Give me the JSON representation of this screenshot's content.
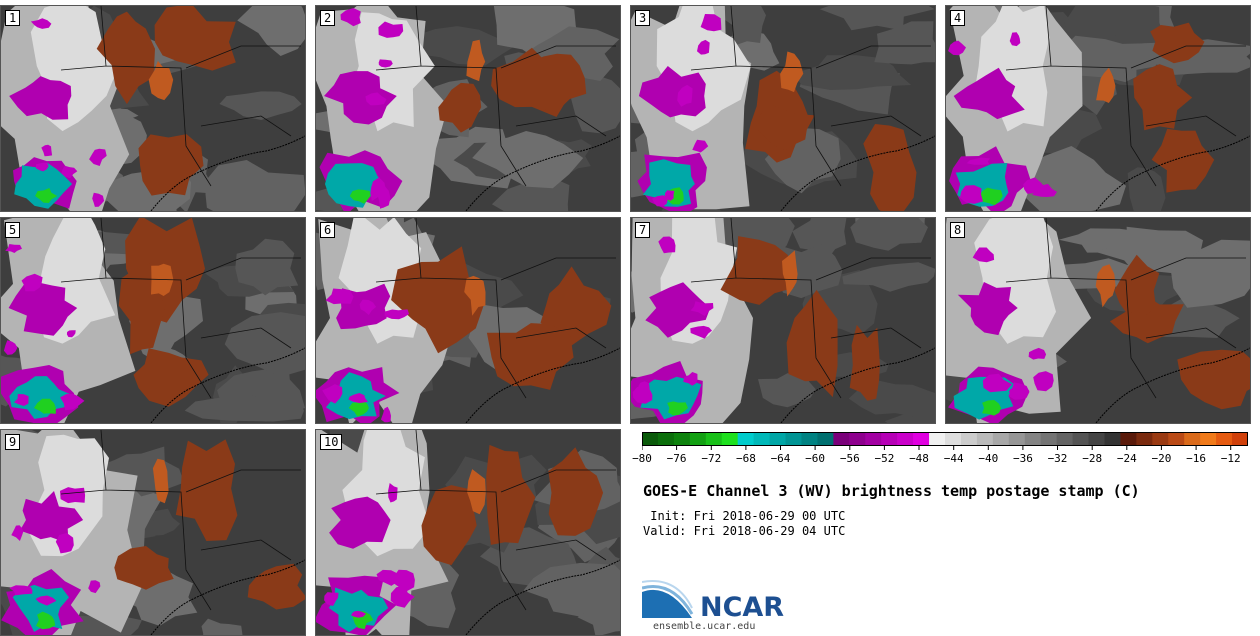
{
  "panels": [
    {
      "label": "1"
    },
    {
      "label": "2"
    },
    {
      "label": "3"
    },
    {
      "label": "4"
    },
    {
      "label": "5"
    },
    {
      "label": "6"
    },
    {
      "label": "7"
    },
    {
      "label": "8"
    },
    {
      "label": "9"
    },
    {
      "label": "10"
    }
  ],
  "colorbar": {
    "min": -80,
    "max": -10,
    "step": 2,
    "tick_labels": [
      "−80",
      "−76",
      "−72",
      "−68",
      "−64",
      "−60",
      "−56",
      "−52",
      "−48",
      "−44",
      "−40",
      "−36",
      "−32",
      "−28",
      "−24",
      "−20",
      "−16",
      "−12"
    ],
    "colors": [
      "#0a5a0a",
      "#0b6e0b",
      "#0d820d",
      "#12a012",
      "#18c018",
      "#1ee01e",
      "#00cccc",
      "#00b8b8",
      "#00a6a6",
      "#009494",
      "#008282",
      "#007070",
      "#7a007a",
      "#8e008e",
      "#a200a2",
      "#b600b6",
      "#ca00ca",
      "#e000e0",
      "#f0f0f0",
      "#dedede",
      "#cccccc",
      "#bababa",
      "#a8a8a8",
      "#969696",
      "#848484",
      "#747474",
      "#646464",
      "#545454",
      "#444444",
      "#343434",
      "#5a1a0a",
      "#7a2a0e",
      "#9a3a12",
      "#ba4a16",
      "#da6a1a",
      "#f07a1a",
      "#e55a10",
      "#d0400a"
    ]
  },
  "title": "GOES-E Channel 3 (WV) brightness temp postage stamp (C)",
  "init": " Init: Fri 2018-06-29 00 UTC",
  "valid": "Valid: Fri 2018-06-29 04 UTC",
  "logo": {
    "text": "NCAR",
    "url": "ensemble.ucar.edu"
  }
}
